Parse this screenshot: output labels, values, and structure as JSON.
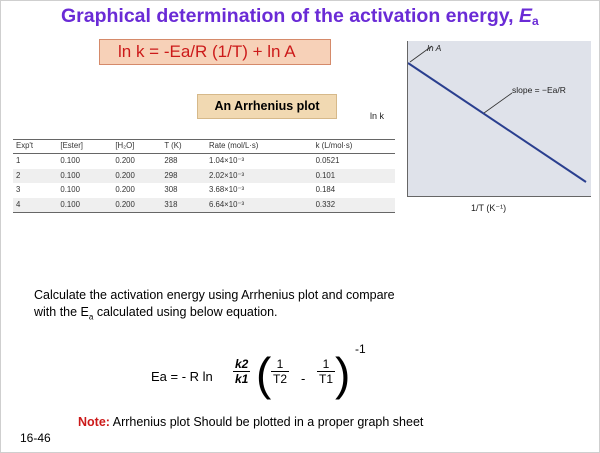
{
  "slide": {
    "title_prefix": "Graphical determination of the activation energy, ",
    "title_symbol": "E",
    "title_sub": "a",
    "main_equation": "ln k = -Ea/R (1/T) + ln A",
    "plot_label": "An Arrhenius plot",
    "graph": {
      "ln_a_label": "ln A",
      "slope_label": "slope = −Ea/R",
      "y_label": "ln k",
      "x_label": "1/T (K⁻¹)"
    },
    "table": {
      "headers": [
        "Exp't",
        "[Ester]",
        "[H₂O]",
        "T (K)",
        "Rate (mol/L·s)",
        "k (L/mol·s)"
      ],
      "rows": [
        [
          "1",
          "0.100",
          "0.200",
          "288",
          "1.04×10⁻³",
          "0.0521"
        ],
        [
          "2",
          "0.100",
          "0.200",
          "298",
          "2.02×10⁻³",
          "0.101"
        ],
        [
          "3",
          "0.100",
          "0.200",
          "308",
          "3.68×10⁻³",
          "0.184"
        ],
        [
          "4",
          "0.100",
          "0.200",
          "318",
          "6.64×10⁻³",
          "0.332"
        ]
      ]
    },
    "paragraph_line1": "Calculate the activation energy using Arrhenius plot and compare",
    "paragraph_line2_a": "with the E",
    "paragraph_line2_sub": "a",
    "paragraph_line2_b": " calculated using below equation.",
    "equation2": {
      "lhs": "Ea = - R  ln",
      "k2": "k2",
      "k1": "k1",
      "one": "1",
      "t2": "T2",
      "t1": "T1",
      "minus": "-",
      "exponent": "-1"
    },
    "note_label": "Note:",
    "note_text": " Arrhenius plot Should be plotted in a proper graph sheet",
    "slide_number": "16-46"
  }
}
